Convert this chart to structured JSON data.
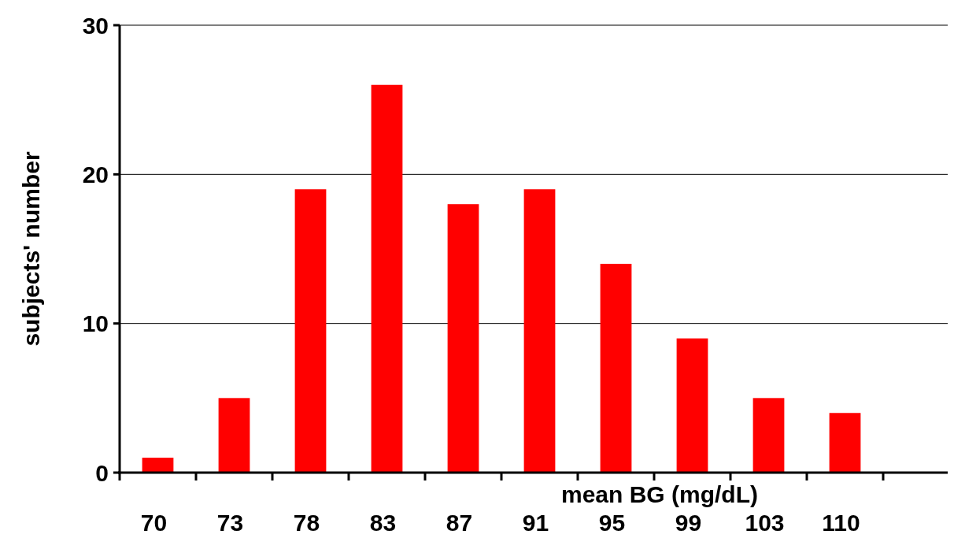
{
  "chart_data": {
    "type": "bar",
    "xlabel": "mean BG (mg/dL)",
    "ylabel": "subjects' number",
    "categories": [
      "70",
      "73",
      "78",
      "83",
      "87",
      "91",
      "95",
      "99",
      "103",
      "110"
    ],
    "values": [
      1,
      5,
      19,
      26,
      18,
      19,
      14,
      9,
      5,
      4
    ],
    "color": "#ff0000",
    "ylim": [
      0,
      30
    ],
    "yticks": [
      0,
      10,
      20,
      30
    ],
    "grid": "y"
  }
}
